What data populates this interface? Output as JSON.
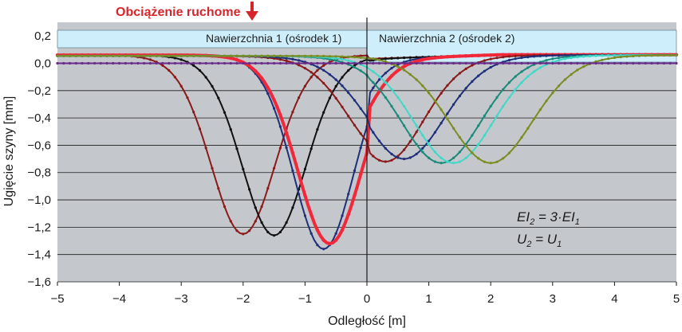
{
  "chart_data": {
    "type": "line",
    "title": "",
    "xlabel": "Odległość [m]",
    "ylabel": "Ugięcie szyny [mm]",
    "xlim": [
      -5,
      5
    ],
    "ylim": [
      -1.6,
      0.3
    ],
    "x_ticks": [
      "−5",
      "−4",
      "−3",
      "−2",
      "−1",
      "0",
      "1",
      "2",
      "3",
      "4",
      "5"
    ],
    "y_ticks": [
      "0,2",
      "0,0",
      "−0,2",
      "−0,4",
      "−0,6",
      "−0,8",
      "−1,0",
      "−1,2",
      "−1,4",
      "−1,6"
    ],
    "grid": true,
    "annotations": {
      "load": "Obciążenie ruchome",
      "surface_1": "Nawierzchnia 1 (ośrodek 1)",
      "surface_2": "Nawierzchnia 2 (ośrodek 2)",
      "formula_1": {
        "lhs": "EI",
        "lhs_sub": "2",
        "eq": " = 3·",
        "rhs": "EI",
        "rhs_sub": "1"
      },
      "formula_2": {
        "lhs": "U",
        "lhs_sub": "2",
        "eq": " = ",
        "rhs": "U",
        "rhs_sub": "1"
      }
    },
    "series": [
      {
        "color": "#8b1a1a",
        "center": -2.0,
        "depth": -1.25,
        "width": 0.85,
        "side": "left"
      },
      {
        "color": "#111111",
        "center": -1.5,
        "depth": -1.26,
        "width": 0.85,
        "side": "left"
      },
      {
        "color": "#1f2f7a",
        "center": -0.7,
        "depth": -1.36,
        "width": 0.8,
        "side": "left"
      },
      {
        "color": "#f0283a",
        "center": -0.6,
        "depth": -1.32,
        "width": 0.85,
        "side": "left",
        "bold": true
      },
      {
        "color": "#8b1a1a",
        "center": 0.3,
        "depth": -0.72,
        "width": 1.0,
        "side": "right"
      },
      {
        "color": "#1f2f7a",
        "center": 0.6,
        "depth": -0.7,
        "width": 1.05,
        "side": "right"
      },
      {
        "color": "#1b8a7a",
        "center": 1.2,
        "depth": -0.73,
        "width": 1.05,
        "side": "right"
      },
      {
        "color": "#40d8c8",
        "center": 1.4,
        "depth": -0.73,
        "width": 1.05,
        "side": "right"
      },
      {
        "color": "#7a8c22",
        "center": 2.0,
        "depth": -0.73,
        "width": 1.1,
        "side": "right"
      },
      {
        "color": "#6a2a8a",
        "center": 0.0,
        "depth": 0.0,
        "width": 1.0,
        "side": "flat"
      }
    ]
  }
}
